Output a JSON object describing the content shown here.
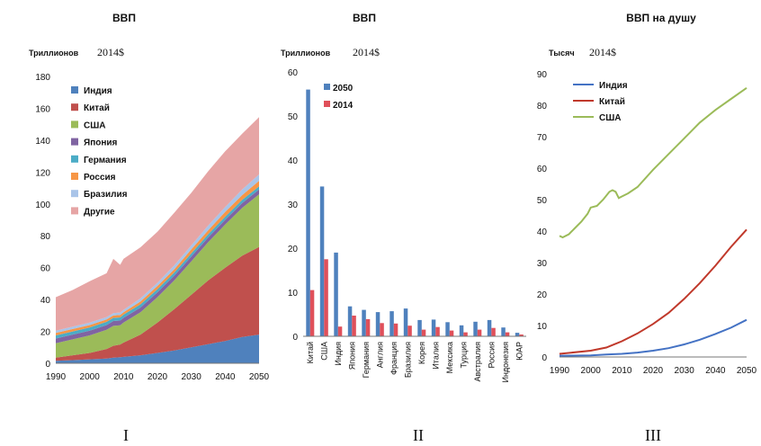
{
  "panel_labels": [
    "I",
    "II",
    "III"
  ],
  "chart_data": [
    {
      "type": "area",
      "title": "ВВП",
      "ylabel": "Триллионов",
      "ylabel_unit": "2014$",
      "x": [
        1990,
        1995,
        2000,
        2005,
        2007,
        2009,
        2010,
        2015,
        2020,
        2025,
        2030,
        2035,
        2040,
        2045,
        2050
      ],
      "xticks": [
        1990,
        2000,
        2010,
        2020,
        2030,
        2040,
        2050
      ],
      "ylim": [
        0,
        180
      ],
      "yticks": [
        0,
        20,
        40,
        60,
        80,
        100,
        120,
        140,
        160,
        180
      ],
      "legend_position": "top-left",
      "series": [
        {
          "name": "Индия",
          "color": "#4f81bd",
          "values": [
            1.5,
            2,
            2.5,
            3,
            3.5,
            3.8,
            4,
            5,
            6.5,
            8,
            10,
            12,
            14,
            16.5,
            18
          ]
        },
        {
          "name": "Китай",
          "color": "#c0504d",
          "values": [
            2,
            3,
            4,
            6,
            7.5,
            8,
            9,
            13,
            19,
            26,
            33,
            40,
            46,
            51,
            55
          ]
        },
        {
          "name": "США",
          "color": "#9bbb59",
          "values": [
            9,
            10,
            11,
            12,
            12.5,
            12,
            12.5,
            14,
            16,
            18,
            21,
            24,
            27,
            30,
            33
          ]
        },
        {
          "name": "Япония",
          "color": "#8064a2",
          "values": [
            3,
            3,
            3,
            3,
            3,
            3,
            3,
            3,
            3,
            3,
            3,
            3,
            3,
            3,
            3
          ]
        },
        {
          "name": "Германия",
          "color": "#4bacc6",
          "values": [
            2,
            2,
            2,
            2,
            2,
            2,
            2,
            2,
            2,
            2,
            2,
            2,
            2,
            2,
            2
          ]
        },
        {
          "name": "Россия",
          "color": "#f79646",
          "values": [
            1.5,
            1.5,
            1.5,
            1.5,
            1.5,
            1.5,
            1.5,
            1.8,
            2,
            2,
            2.5,
            2.5,
            3,
            3,
            3.5
          ]
        },
        {
          "name": "Бразилия",
          "color": "#a9c4e8",
          "values": [
            1.5,
            1.5,
            1.5,
            1.5,
            1.5,
            1.5,
            1.5,
            2,
            2,
            2.5,
            2.5,
            3,
            3,
            3.5,
            4
          ]
        },
        {
          "name": "Другие",
          "color": "#e6a5a5",
          "values": [
            21,
            23,
            26,
            27.5,
            34,
            30,
            32,
            32,
            32,
            33,
            33,
            34,
            35,
            35,
            36
          ]
        }
      ]
    },
    {
      "type": "bar",
      "title": "ВВП",
      "ylabel": "Триллионов",
      "ylabel_unit": "2014$",
      "categories": [
        "Китай",
        "США",
        "Индия",
        "Япония",
        "Германия",
        "Англия",
        "Франция",
        "Бразилия",
        "Корея",
        "Италия",
        "Мексика",
        "Турция",
        "Австралия",
        "Россия",
        "Индонезия",
        "ЮАР"
      ],
      "ylim": [
        0,
        60
      ],
      "yticks": [
        0,
        10,
        20,
        30,
        40,
        50,
        60
      ],
      "legend_position": "top-left",
      "series": [
        {
          "name": "2050",
          "color": "#4f81bd",
          "values": [
            56,
            34,
            19,
            6.8,
            6,
            5.5,
            5.7,
            6.3,
            3.7,
            3.8,
            3.2,
            2.5,
            3.3,
            3.7,
            2,
            0.8
          ]
        },
        {
          "name": "2014",
          "color": "#e0505a",
          "values": [
            10.5,
            17.5,
            2.2,
            4.7,
            3.9,
            3,
            2.9,
            2.4,
            1.5,
            2.1,
            1.3,
            0.9,
            1.5,
            1.9,
            0.9,
            0.4
          ]
        }
      ]
    },
    {
      "type": "line",
      "title": "ВВП на душу",
      "ylabel": "Тысяч",
      "ylabel_unit": "2014$",
      "xticks": [
        1990,
        2000,
        2010,
        2020,
        2030,
        2040,
        2050
      ],
      "ylim": [
        0,
        90
      ],
      "yticks": [
        0,
        10,
        20,
        30,
        40,
        50,
        60,
        70,
        80,
        90
      ],
      "legend_position": "top-left",
      "series": [
        {
          "name": "Индия",
          "color": "#4472c4",
          "x": [
            1990,
            2000,
            2005,
            2010,
            2015,
            2020,
            2025,
            2030,
            2035,
            2040,
            2045,
            2050
          ],
          "values": [
            0.4,
            0.5,
            0.8,
            1,
            1.4,
            2,
            2.8,
            4,
            5.5,
            7.3,
            9.3,
            11.8
          ]
        },
        {
          "name": "Китай",
          "color": "#c0392b",
          "x": [
            1990,
            2000,
            2005,
            2010,
            2015,
            2020,
            2025,
            2030,
            2035,
            2040,
            2045,
            2050
          ],
          "values": [
            1,
            2,
            3,
            5,
            7.5,
            10.5,
            14,
            18.5,
            23.5,
            29,
            35,
            40.5
          ]
        },
        {
          "name": "США",
          "color": "#9bbb59",
          "x": [
            1990,
            1991,
            1993,
            1995,
            1997,
            1999,
            2000,
            2002,
            2004,
            2006,
            2007,
            2008,
            2009,
            2010,
            2012,
            2015,
            2020,
            2025,
            2030,
            2035,
            2040,
            2045,
            2050
          ],
          "values": [
            38.5,
            38,
            39,
            41,
            43,
            45.5,
            47.5,
            48,
            50,
            52.5,
            53,
            52.5,
            50.5,
            51,
            52,
            54,
            59.5,
            64.5,
            69.5,
            74.5,
            78.5,
            82,
            85.5
          ]
        }
      ]
    }
  ]
}
